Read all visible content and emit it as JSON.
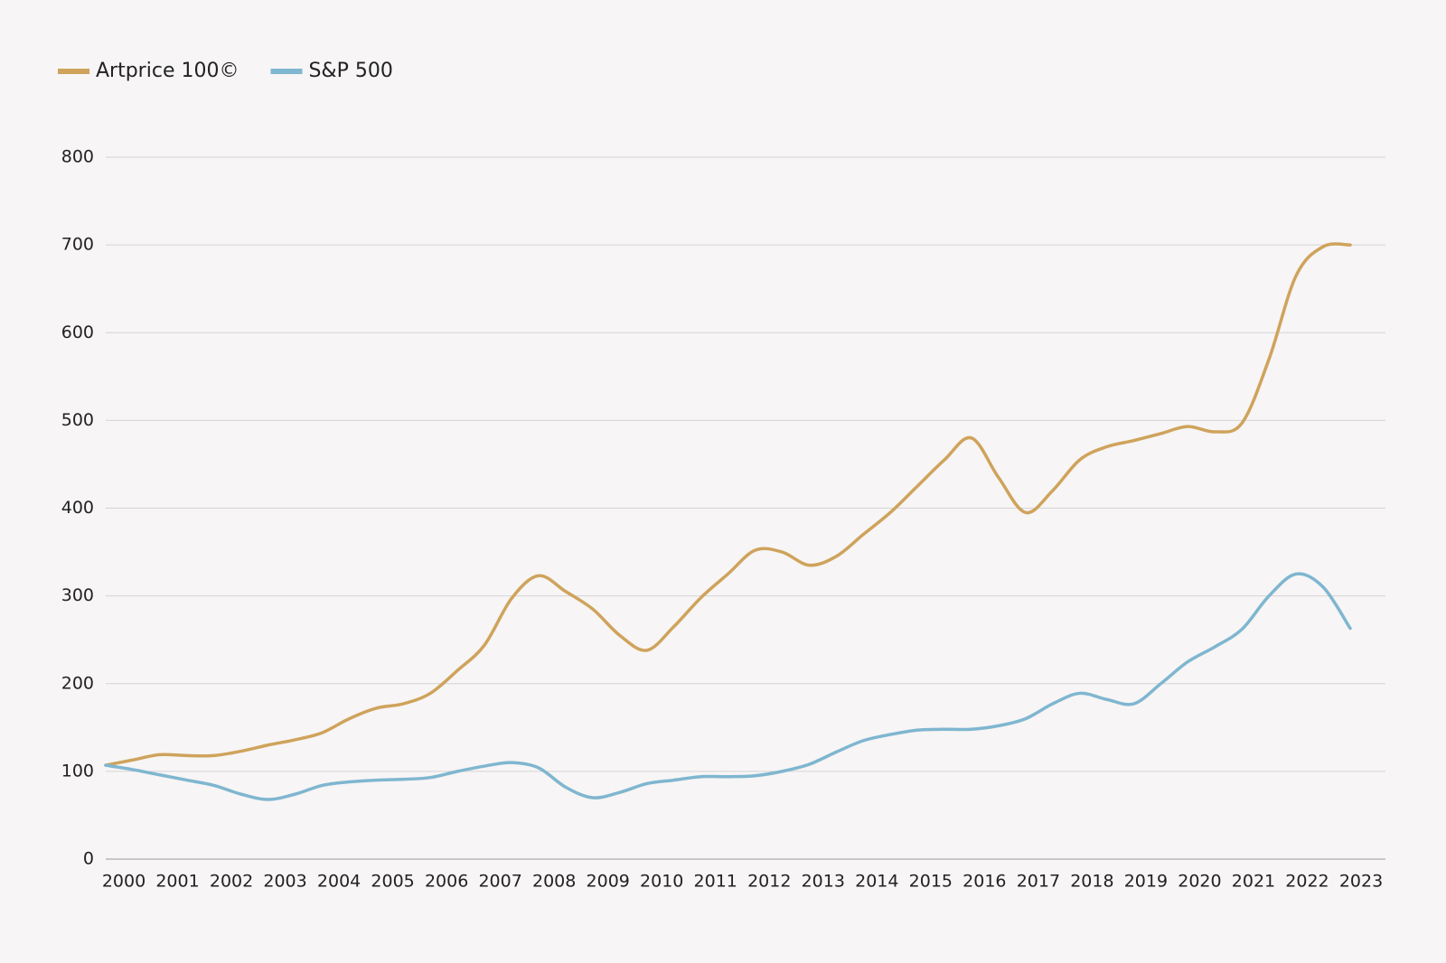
{
  "chart_data": {
    "type": "line",
    "x": [
      2000,
      2000.5,
      2001,
      2001.5,
      2002,
      2002.5,
      2003,
      2003.5,
      2004,
      2004.5,
      2005,
      2005.5,
      2006,
      2006.5,
      2007,
      2007.5,
      2008,
      2008.5,
      2009,
      2009.5,
      2010,
      2010.5,
      2011,
      2011.5,
      2012,
      2012.5,
      2013,
      2013.5,
      2014,
      2014.5,
      2015,
      2015.5,
      2016,
      2016.5,
      2017,
      2017.5,
      2018,
      2018.5,
      2019,
      2019.5,
      2020,
      2020.5,
      2021,
      2021.5,
      2022,
      2022.5,
      2023
    ],
    "series": [
      {
        "name": "Artprice 100©",
        "color": "#cfa35c",
        "values": [
          107,
          113,
          119,
          118,
          118,
          123,
          130,
          136,
          144,
          160,
          172,
          177,
          189,
          215,
          244,
          297,
          323,
          305,
          285,
          255,
          238,
          265,
          298,
          325,
          352,
          350,
          335,
          345,
          370,
          395,
          425,
          455,
          480,
          435,
          395,
          420,
          455,
          470,
          477,
          485,
          493,
          487,
          497,
          570,
          665,
          698,
          700
        ]
      },
      {
        "name": "S&P 500",
        "color": "#7fb6d0",
        "values": [
          107,
          102,
          96,
          90,
          84,
          74,
          68,
          74,
          84,
          88,
          90,
          91,
          93,
          100,
          106,
          110,
          104,
          82,
          70,
          76,
          86,
          90,
          94,
          94,
          95,
          100,
          108,
          122,
          135,
          142,
          147,
          148,
          148,
          152,
          160,
          177,
          189,
          182,
          177,
          200,
          225,
          242,
          262,
          300,
          325,
          310,
          263
        ]
      }
    ],
    "xlim": [
      2000,
      2023
    ],
    "xticks": [
      2000,
      2001,
      2002,
      2003,
      2004,
      2005,
      2006,
      2007,
      2008,
      2009,
      2010,
      2011,
      2012,
      2013,
      2014,
      2015,
      2016,
      2017,
      2018,
      2019,
      2020,
      2021,
      2022,
      2023
    ],
    "ylim": [
      0,
      800
    ],
    "yticks": [
      0,
      100,
      200,
      300,
      400,
      500,
      600,
      700,
      800
    ],
    "grid": true,
    "legend": "top-left"
  }
}
